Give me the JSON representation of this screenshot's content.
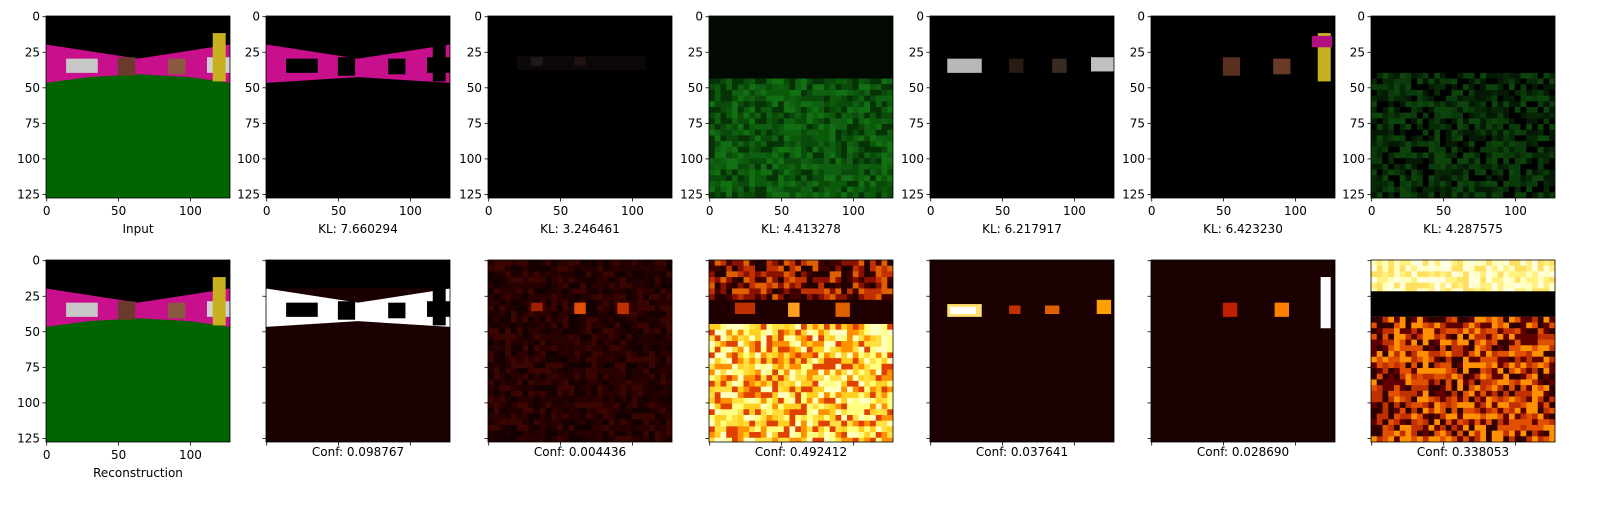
{
  "chart_data": [
    {
      "type": "image",
      "xlabel": "Input",
      "xlim": [
        -0.5,
        127.5
      ],
      "ylim": [
        127.5,
        -0.5
      ],
      "xticks": [
        0,
        50,
        100
      ],
      "yticks": [
        0,
        25,
        50,
        75,
        100,
        125
      ]
    },
    {
      "type": "image",
      "xlabel": "KL: 7.660294",
      "xlim": [
        -0.5,
        127.5
      ],
      "ylim": [
        127.5,
        -0.5
      ],
      "xticks": [
        0,
        50,
        100
      ],
      "yticks": [
        0,
        25,
        50,
        75,
        100,
        125
      ]
    },
    {
      "type": "image",
      "xlabel": "KL: 3.246461",
      "xlim": [
        -0.5,
        127.5
      ],
      "ylim": [
        127.5,
        -0.5
      ],
      "xticks": [
        0,
        50,
        100
      ],
      "yticks": [
        0,
        25,
        50,
        75,
        100,
        125
      ]
    },
    {
      "type": "image",
      "xlabel": "KL: 4.413278",
      "xlim": [
        -0.5,
        127.5
      ],
      "ylim": [
        127.5,
        -0.5
      ],
      "xticks": [
        0,
        50,
        100
      ],
      "yticks": [
        0,
        25,
        50,
        75,
        100,
        125
      ]
    },
    {
      "type": "image",
      "xlabel": "KL: 6.217917",
      "xlim": [
        -0.5,
        127.5
      ],
      "ylim": [
        127.5,
        -0.5
      ],
      "xticks": [
        0,
        50,
        100
      ],
      "yticks": [
        0,
        25,
        50,
        75,
        100,
        125
      ]
    },
    {
      "type": "image",
      "xlabel": "KL: 6.423230",
      "xlim": [
        -0.5,
        127.5
      ],
      "ylim": [
        127.5,
        -0.5
      ],
      "xticks": [
        0,
        50,
        100
      ],
      "yticks": [
        0,
        25,
        50,
        75,
        100,
        125
      ]
    },
    {
      "type": "image",
      "xlabel": "KL: 4.287575",
      "xlim": [
        -0.5,
        127.5
      ],
      "ylim": [
        127.5,
        -0.5
      ],
      "xticks": [
        0,
        50,
        100
      ],
      "yticks": [
        0,
        25,
        50,
        75,
        100,
        125
      ]
    },
    {
      "type": "image",
      "xlabel": "Reconstruction",
      "xlim": [
        -0.5,
        127.5
      ],
      "ylim": [
        127.5,
        -0.5
      ],
      "xticks": [
        0,
        50,
        100
      ],
      "yticks": [
        0,
        25,
        50,
        75,
        100,
        125
      ]
    },
    {
      "type": "image",
      "xlabel": "Conf: 0.098767",
      "xlim": [
        -0.5,
        127.5
      ],
      "ylim": [
        127.5,
        -0.5
      ],
      "xticks": [
        0,
        50,
        100
      ],
      "yticks": [
        0,
        25,
        50,
        75,
        100,
        125
      ],
      "tick_labels": false
    },
    {
      "type": "image",
      "xlabel": "Conf: 0.004436",
      "xlim": [
        -0.5,
        127.5
      ],
      "ylim": [
        127.5,
        -0.5
      ],
      "xticks": [
        0,
        50,
        100
      ],
      "yticks": [
        0,
        25,
        50,
        75,
        100,
        125
      ],
      "tick_labels": false
    },
    {
      "type": "image",
      "xlabel": "Conf: 0.492412",
      "xlim": [
        -0.5,
        127.5
      ],
      "ylim": [
        127.5,
        -0.5
      ],
      "xticks": [
        0,
        50,
        100
      ],
      "yticks": [
        0,
        25,
        50,
        75,
        100,
        125
      ],
      "tick_labels": false
    },
    {
      "type": "image",
      "xlabel": "Conf: 0.037641",
      "xlim": [
        -0.5,
        127.5
      ],
      "ylim": [
        127.5,
        -0.5
      ],
      "xticks": [
        0,
        50,
        100
      ],
      "yticks": [
        0,
        25,
        50,
        75,
        100,
        125
      ],
      "tick_labels": false
    },
    {
      "type": "image",
      "xlabel": "Conf: 0.028690",
      "xlim": [
        -0.5,
        127.5
      ],
      "ylim": [
        127.5,
        -0.5
      ],
      "xticks": [
        0,
        50,
        100
      ],
      "yticks": [
        0,
        25,
        50,
        75,
        100,
        125
      ],
      "tick_labels": false
    },
    {
      "type": "image",
      "xlabel": "Conf: 0.338053",
      "xlim": [
        -0.5,
        127.5
      ],
      "ylim": [
        127.5,
        -0.5
      ],
      "xticks": [
        0,
        50,
        100
      ],
      "yticks": [
        0,
        25,
        50,
        75,
        100,
        125
      ],
      "tick_labels": false
    }
  ]
}
